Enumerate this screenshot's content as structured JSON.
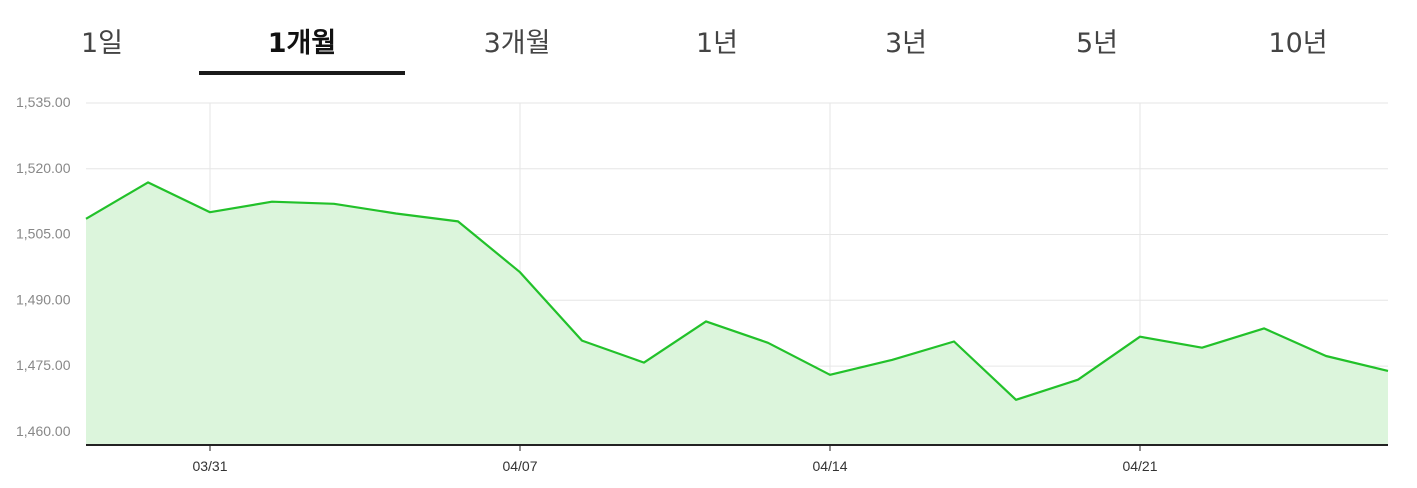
{
  "tabs": [
    {
      "label": "1일",
      "active": false
    },
    {
      "label": "1개월",
      "active": true
    },
    {
      "label": "3개월",
      "active": false
    },
    {
      "label": "1년",
      "active": false
    },
    {
      "label": "3년",
      "active": false
    },
    {
      "label": "5년",
      "active": false
    },
    {
      "label": "10년",
      "active": false
    }
  ],
  "colors": {
    "line": "#22c12a",
    "area": "#dcf5dc",
    "grid": "#e6e6e6",
    "baseline": "#222222",
    "tick_text": "#888888"
  },
  "chart_data": {
    "type": "area",
    "x": [
      "03/27",
      "03/28",
      "03/31",
      "04/01",
      "04/02",
      "04/03",
      "04/04",
      "04/07",
      "04/08",
      "04/09",
      "04/10",
      "04/11",
      "04/14",
      "04/15",
      "04/16",
      "04/17",
      "04/18",
      "04/21",
      "04/22",
      "04/23",
      "04/24",
      "04/25"
    ],
    "y": [
      1508.6,
      1516.9,
      1510.1,
      1512.5,
      1512.0,
      1509.8,
      1508.0,
      1496.4,
      1480.8,
      1475.8,
      1485.2,
      1480.3,
      1473.0,
      1476.4,
      1480.6,
      1467.3,
      1471.9,
      1481.7,
      1479.2,
      1483.6,
      1477.3,
      1473.9
    ],
    "xticks": [
      "03/31",
      "04/07",
      "04/14",
      "04/21"
    ],
    "yticks": [
      "1,460.00",
      "1,475.00",
      "1,490.00",
      "1,505.00",
      "1,520.00",
      "1,535.00"
    ],
    "ylim": [
      1457,
      1535
    ],
    "title": "",
    "xlabel": "",
    "ylabel": "",
    "grid": true
  }
}
